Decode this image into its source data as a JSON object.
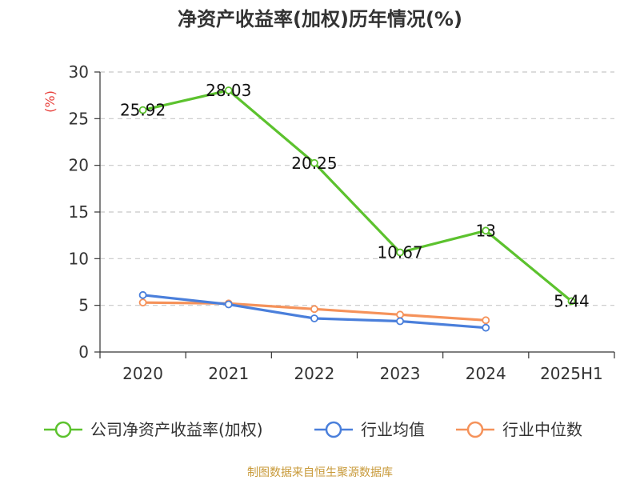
{
  "chart_data": {
    "type": "line",
    "title": "净资产收益率(加权)历年情况(%)",
    "ylabel": "(%)",
    "xlabel": "",
    "categories": [
      "2020",
      "2021",
      "2022",
      "2023",
      "2024",
      "2025H1"
    ],
    "ylim": [
      0,
      30
    ],
    "yticks": [
      0,
      5,
      10,
      15,
      20,
      25,
      30
    ],
    "grid": true,
    "legend_position": "bottom",
    "series": [
      {
        "name": "公司净资产收益率(加权)",
        "color": "#5cc22e",
        "values": [
          25.92,
          28.03,
          20.25,
          10.67,
          13,
          5.44
        ],
        "labels": [
          "25.92",
          "28.03",
          "20.25",
          "10.67",
          "13",
          "5.44"
        ],
        "show_labels": true
      },
      {
        "name": "行业均值",
        "color": "#4a7fdb",
        "values": [
          6.1,
          5.1,
          3.6,
          3.3,
          2.6,
          null
        ],
        "show_labels": false
      },
      {
        "name": "行业中位数",
        "color": "#f5925a",
        "values": [
          5.3,
          5.2,
          4.6,
          4.0,
          3.4,
          null
        ],
        "show_labels": false
      }
    ]
  },
  "source": "制图数据来自恒生聚源数据库"
}
